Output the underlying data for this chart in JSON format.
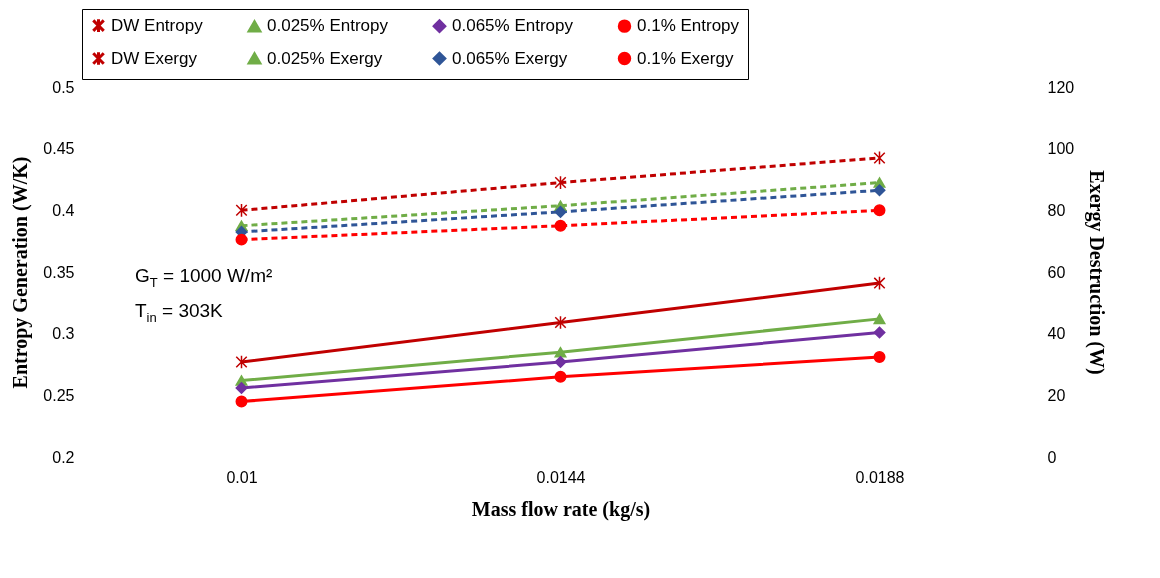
{
  "chart_data": {
    "type": "line",
    "categories": [
      "0.01",
      "0.0144",
      "0.0188"
    ],
    "xlabel": "Mass flow rate (kg/s)",
    "ylabel": "Entropy Generation (W/K)",
    "y2label": "Exergy Destruction (W)",
    "ylim": [
      0.2,
      0.5
    ],
    "yticks": [
      0.2,
      0.25,
      0.3,
      0.35,
      0.4,
      0.45,
      0.5
    ],
    "y2lim": [
      0,
      120
    ],
    "y2ticks": [
      0,
      20,
      40,
      60,
      80,
      100,
      120
    ],
    "legend": "top",
    "grid": false,
    "annotations": [
      "G$_{T}$ = 1000 W/m²",
      "T$_{in}$ = 303K"
    ],
    "series": [
      {
        "name": "DW Entropy",
        "color": "#c00000",
        "marker": "cross",
        "line_style": "solid",
        "values": [
          0.277,
          0.309,
          0.341
        ]
      },
      {
        "name": "0.025% Entropy",
        "color": "#70ad47",
        "marker": "triangle",
        "line_style": "solid",
        "values": [
          0.262,
          0.285,
          0.312
        ]
      },
      {
        "name": "0.065% Entropy",
        "color": "#7030a0",
        "marker": "diamond",
        "line_style": "solid",
        "values": [
          0.256,
          0.277,
          0.301
        ]
      },
      {
        "name": "0.1% Entropy",
        "color": "#ff0000",
        "marker": "circle",
        "line_style": "solid",
        "values": [
          0.245,
          0.265,
          0.281
        ]
      },
      {
        "name": "DW Exergy",
        "color": "#c00000",
        "marker": "cross",
        "line_style": "dashed",
        "axis": "y2",
        "values": [
          80,
          89,
          97
        ]
      },
      {
        "name": "0.025% Exergy",
        "color": "#70ad47",
        "marker": "triangle",
        "line_style": "dashed",
        "axis": "y2",
        "values": [
          75,
          81.5,
          89
        ]
      },
      {
        "name": "0.065% Exergy",
        "color": "#2f5597",
        "marker": "diamond",
        "line_style": "dashed",
        "axis": "y2",
        "values": [
          73,
          79.5,
          86.5
        ]
      },
      {
        "name": "0.1% Exergy",
        "color": "#ff0000",
        "marker": "circle",
        "line_style": "dashed",
        "axis": "y2",
        "values": [
          70.5,
          75,
          80
        ]
      }
    ]
  }
}
